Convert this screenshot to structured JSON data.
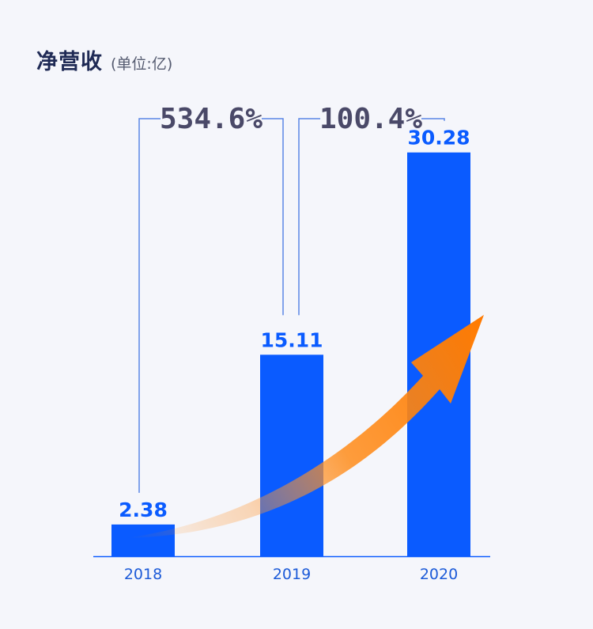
{
  "header": {
    "title": "净营收",
    "unit": "(单位:亿)"
  },
  "chart_data": {
    "type": "bar",
    "title": "净营收",
    "ylabel": "(单位:亿)",
    "categories": [
      "2018",
      "2019",
      "2020"
    ],
    "values": [
      2.38,
      15.11,
      30.28
    ],
    "value_labels": [
      "2.38",
      "15.11",
      "30.28"
    ],
    "ylim": [
      0,
      34
    ],
    "grid": false,
    "growth": [
      {
        "from": "2018",
        "to": "2019",
        "label": "534.6%"
      },
      {
        "from": "2019",
        "to": "2020",
        "label": "100.4%"
      }
    ],
    "colors": {
      "bar": "#0a5bff",
      "axis": "#0a5bff",
      "bracket": "#5b86e6",
      "arrow": "#ff8000",
      "growth_text": "#4a4968"
    }
  }
}
